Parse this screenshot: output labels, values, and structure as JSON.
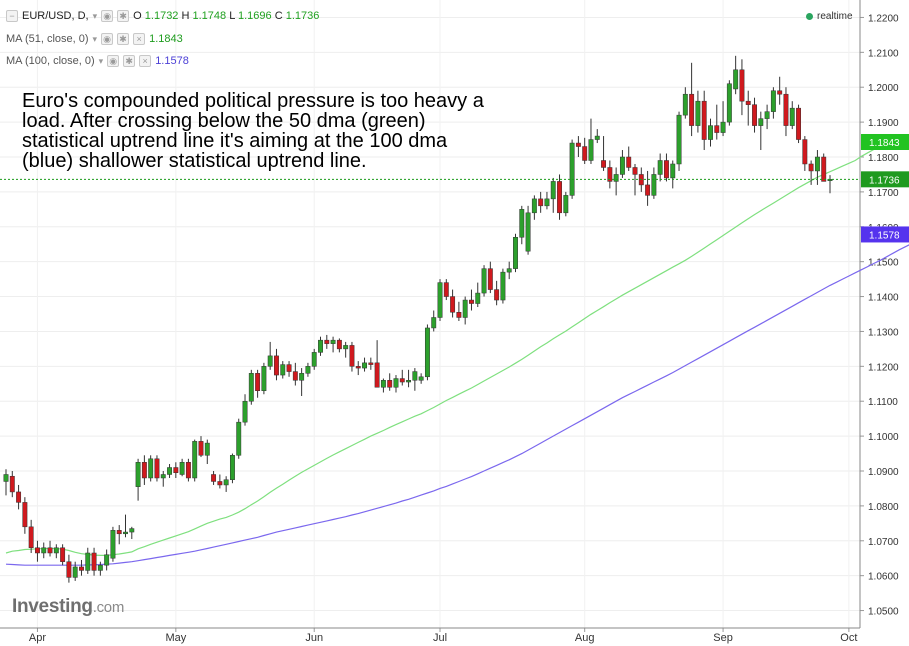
{
  "header": {
    "symbol": "EUR/USD, D,",
    "ohlc": [
      {
        "k": "O",
        "v": "1.1732"
      },
      {
        "k": "H",
        "v": "1.1748"
      },
      {
        "k": "L",
        "v": "1.1696"
      },
      {
        "k": "C",
        "v": "1.1736"
      }
    ],
    "ma51_label": "MA (51, close, 0)",
    "ma51_value": "1.1843",
    "ma100_label": "MA (100, close, 0)",
    "ma100_value": "1.1578",
    "realtime": "realtime"
  },
  "annotation": "Euro's compounded political pressure is too heavy a load. After crossing below the 50 dma (green) statistical uptrend line it's aiming at the 100 dma (blue) shallower statistical uptrend line.",
  "logo": {
    "main": "Investing",
    "suffix": ".com"
  },
  "colors": {
    "up": "#2ca02c",
    "down": "#d0191e",
    "ma51": "#7fe07f",
    "ma100": "#7b68ee",
    "price_line": "#1a9c1a"
  },
  "chart_data": {
    "type": "candlestick",
    "ylim": [
      1.045,
      1.225
    ],
    "yticks": [
      "1.0500",
      "1.0600",
      "1.0700",
      "1.0800",
      "1.0900",
      "1.1000",
      "1.1100",
      "1.1200",
      "1.1300",
      "1.1400",
      "1.1500",
      "1.1600",
      "1.1700",
      "1.1800",
      "1.1900",
      "1.2000",
      "1.2100",
      "1.2200"
    ],
    "month_labels": [
      {
        "label": "Apr",
        "i": 5
      },
      {
        "label": "May",
        "i": 27
      },
      {
        "label": "Jun",
        "i": 49
      },
      {
        "label": "Jul",
        "i": 69
      },
      {
        "label": "Aug",
        "i": 92
      },
      {
        "label": "Sep",
        "i": 114
      },
      {
        "label": "Oct",
        "i": 134
      }
    ],
    "price_tags": [
      {
        "value": 1.1843,
        "label": "1.1843",
        "series": "ma51"
      },
      {
        "value": 1.1736,
        "label": "1.1736",
        "series": "last"
      },
      {
        "value": 1.1578,
        "label": "1.1578",
        "series": "ma100"
      }
    ],
    "candles": [
      {
        "o": 1.087,
        "h": 1.0905,
        "l": 1.083,
        "c": 1.089
      },
      {
        "o": 1.0885,
        "h": 1.09,
        "l": 1.0825,
        "c": 1.084
      },
      {
        "o": 1.084,
        "h": 1.086,
        "l": 1.079,
        "c": 1.081
      },
      {
        "o": 1.081,
        "h": 1.0825,
        "l": 1.072,
        "c": 1.074
      },
      {
        "o": 1.074,
        "h": 1.076,
        "l": 1.0665,
        "c": 1.068
      },
      {
        "o": 1.068,
        "h": 1.07,
        "l": 1.064,
        "c": 1.0665
      },
      {
        "o": 1.0665,
        "h": 1.0695,
        "l": 1.065,
        "c": 1.068
      },
      {
        "o": 1.068,
        "h": 1.07,
        "l": 1.0655,
        "c": 1.0665
      },
      {
        "o": 1.0665,
        "h": 1.069,
        "l": 1.065,
        "c": 1.068
      },
      {
        "o": 1.068,
        "h": 1.069,
        "l": 1.063,
        "c": 1.064
      },
      {
        "o": 1.064,
        "h": 1.066,
        "l": 1.058,
        "c": 1.0595
      },
      {
        "o": 1.0595,
        "h": 1.064,
        "l": 1.0585,
        "c": 1.0625
      },
      {
        "o": 1.0625,
        "h": 1.0645,
        "l": 1.06,
        "c": 1.0615
      },
      {
        "o": 1.0615,
        "h": 1.068,
        "l": 1.0605,
        "c": 1.0665
      },
      {
        "o": 1.0665,
        "h": 1.068,
        "l": 1.06,
        "c": 1.0615
      },
      {
        "o": 1.0615,
        "h": 1.064,
        "l": 1.06,
        "c": 1.063
      },
      {
        "o": 1.063,
        "h": 1.0675,
        "l": 1.0615,
        "c": 1.066
      },
      {
        "o": 1.065,
        "h": 1.074,
        "l": 1.064,
        "c": 1.073
      },
      {
        "o": 1.073,
        "h": 1.0745,
        "l": 1.069,
        "c": 1.072
      },
      {
        "o": 1.072,
        "h": 1.0775,
        "l": 1.071,
        "c": 1.0725
      },
      {
        "o": 1.0725,
        "h": 1.074,
        "l": 1.0705,
        "c": 1.0735
      },
      {
        "o": 1.0855,
        "h": 1.0935,
        "l": 1.0815,
        "c": 1.0925
      },
      {
        "o": 1.0925,
        "h": 1.0945,
        "l": 1.086,
        "c": 1.088
      },
      {
        "o": 1.088,
        "h": 1.0945,
        "l": 1.087,
        "c": 1.0935
      },
      {
        "o": 1.0935,
        "h": 1.0945,
        "l": 1.087,
        "c": 1.088
      },
      {
        "o": 1.088,
        "h": 1.09,
        "l": 1.0855,
        "c": 1.089
      },
      {
        "o": 1.089,
        "h": 1.092,
        "l": 1.088,
        "c": 1.091
      },
      {
        "o": 1.091,
        "h": 1.0925,
        "l": 1.088,
        "c": 1.0895
      },
      {
        "o": 1.089,
        "h": 1.0935,
        "l": 1.0885,
        "c": 1.0925
      },
      {
        "o": 1.0925,
        "h": 1.0935,
        "l": 1.087,
        "c": 1.088
      },
      {
        "o": 1.088,
        "h": 1.099,
        "l": 1.087,
        "c": 1.0985
      },
      {
        "o": 1.0985,
        "h": 1.1,
        "l": 1.094,
        "c": 1.0945
      },
      {
        "o": 1.0945,
        "h": 1.099,
        "l": 1.092,
        "c": 1.098
      },
      {
        "o": 1.089,
        "h": 1.09,
        "l": 1.086,
        "c": 1.087
      },
      {
        "o": 1.087,
        "h": 1.089,
        "l": 1.085,
        "c": 1.086
      },
      {
        "o": 1.086,
        "h": 1.0885,
        "l": 1.084,
        "c": 1.0875
      },
      {
        "o": 1.0875,
        "h": 1.095,
        "l": 1.0865,
        "c": 1.0945
      },
      {
        "o": 1.0945,
        "h": 1.105,
        "l": 1.0935,
        "c": 1.104
      },
      {
        "o": 1.104,
        "h": 1.112,
        "l": 1.103,
        "c": 1.11
      },
      {
        "o": 1.11,
        "h": 1.119,
        "l": 1.109,
        "c": 1.118
      },
      {
        "o": 1.118,
        "h": 1.119,
        "l": 1.111,
        "c": 1.113
      },
      {
        "o": 1.113,
        "h": 1.121,
        "l": 1.112,
        "c": 1.12
      },
      {
        "o": 1.12,
        "h": 1.127,
        "l": 1.119,
        "c": 1.123
      },
      {
        "o": 1.123,
        "h": 1.125,
        "l": 1.116,
        "c": 1.1175
      },
      {
        "o": 1.1175,
        "h": 1.1215,
        "l": 1.1165,
        "c": 1.1205
      },
      {
        "o": 1.1205,
        "h": 1.1215,
        "l": 1.117,
        "c": 1.1185
      },
      {
        "o": 1.1185,
        "h": 1.121,
        "l": 1.1145,
        "c": 1.116
      },
      {
        "o": 1.116,
        "h": 1.1195,
        "l": 1.1115,
        "c": 1.118
      },
      {
        "o": 1.118,
        "h": 1.121,
        "l": 1.117,
        "c": 1.12
      },
      {
        "o": 1.12,
        "h": 1.125,
        "l": 1.119,
        "c": 1.124
      },
      {
        "o": 1.124,
        "h": 1.1285,
        "l": 1.123,
        "c": 1.1275
      },
      {
        "o": 1.1275,
        "h": 1.129,
        "l": 1.125,
        "c": 1.1265
      },
      {
        "o": 1.1265,
        "h": 1.1285,
        "l": 1.124,
        "c": 1.1275
      },
      {
        "o": 1.1275,
        "h": 1.128,
        "l": 1.124,
        "c": 1.125
      },
      {
        "o": 1.125,
        "h": 1.127,
        "l": 1.1225,
        "c": 1.126
      },
      {
        "o": 1.126,
        "h": 1.127,
        "l": 1.1185,
        "c": 1.12
      },
      {
        "o": 1.12,
        "h": 1.1215,
        "l": 1.1175,
        "c": 1.1195
      },
      {
        "o": 1.1195,
        "h": 1.1225,
        "l": 1.1185,
        "c": 1.121
      },
      {
        "o": 1.121,
        "h": 1.1225,
        "l": 1.119,
        "c": 1.1205
      },
      {
        "o": 1.121,
        "h": 1.1275,
        "l": 1.114,
        "c": 1.114
      },
      {
        "o": 1.114,
        "h": 1.1165,
        "l": 1.1125,
        "c": 1.116
      },
      {
        "o": 1.116,
        "h": 1.118,
        "l": 1.113,
        "c": 1.114
      },
      {
        "o": 1.114,
        "h": 1.1175,
        "l": 1.1125,
        "c": 1.1165
      },
      {
        "o": 1.1165,
        "h": 1.119,
        "l": 1.1145,
        "c": 1.1155
      },
      {
        "o": 1.1155,
        "h": 1.119,
        "l": 1.114,
        "c": 1.116
      },
      {
        "o": 1.116,
        "h": 1.1195,
        "l": 1.113,
        "c": 1.1185
      },
      {
        "o": 1.116,
        "h": 1.118,
        "l": 1.115,
        "c": 1.117
      },
      {
        "o": 1.117,
        "h": 1.132,
        "l": 1.116,
        "c": 1.131
      },
      {
        "o": 1.131,
        "h": 1.136,
        "l": 1.13,
        "c": 1.134
      },
      {
        "o": 1.134,
        "h": 1.145,
        "l": 1.133,
        "c": 1.144
      },
      {
        "o": 1.144,
        "h": 1.145,
        "l": 1.139,
        "c": 1.14
      },
      {
        "o": 1.14,
        "h": 1.142,
        "l": 1.134,
        "c": 1.1355
      },
      {
        "o": 1.1355,
        "h": 1.1385,
        "l": 1.133,
        "c": 1.134
      },
      {
        "o": 1.134,
        "h": 1.14,
        "l": 1.132,
        "c": 1.139
      },
      {
        "o": 1.139,
        "h": 1.142,
        "l": 1.136,
        "c": 1.138
      },
      {
        "o": 1.138,
        "h": 1.144,
        "l": 1.137,
        "c": 1.141
      },
      {
        "o": 1.141,
        "h": 1.149,
        "l": 1.14,
        "c": 1.148
      },
      {
        "o": 1.148,
        "h": 1.15,
        "l": 1.141,
        "c": 1.142
      },
      {
        "o": 1.142,
        "h": 1.1445,
        "l": 1.1375,
        "c": 1.139
      },
      {
        "o": 1.139,
        "h": 1.148,
        "l": 1.138,
        "c": 1.147
      },
      {
        "o": 1.147,
        "h": 1.15,
        "l": 1.145,
        "c": 1.148
      },
      {
        "o": 1.148,
        "h": 1.158,
        "l": 1.147,
        "c": 1.157
      },
      {
        "o": 1.157,
        "h": 1.166,
        "l": 1.155,
        "c": 1.165
      },
      {
        "o": 1.153,
        "h": 1.166,
        "l": 1.152,
        "c": 1.164
      },
      {
        "o": 1.164,
        "h": 1.169,
        "l": 1.162,
        "c": 1.168
      },
      {
        "o": 1.168,
        "h": 1.17,
        "l": 1.164,
        "c": 1.166
      },
      {
        "o": 1.166,
        "h": 1.17,
        "l": 1.165,
        "c": 1.168
      },
      {
        "o": 1.168,
        "h": 1.174,
        "l": 1.164,
        "c": 1.173
      },
      {
        "o": 1.173,
        "h": 1.175,
        "l": 1.162,
        "c": 1.164
      },
      {
        "o": 1.164,
        "h": 1.17,
        "l": 1.163,
        "c": 1.169
      },
      {
        "o": 1.169,
        "h": 1.185,
        "l": 1.168,
        "c": 1.184
      },
      {
        "o": 1.184,
        "h": 1.186,
        "l": 1.18,
        "c": 1.183
      },
      {
        "o": 1.183,
        "h": 1.1855,
        "l": 1.178,
        "c": 1.179
      },
      {
        "o": 1.179,
        "h": 1.191,
        "l": 1.178,
        "c": 1.185
      },
      {
        "o": 1.185,
        "h": 1.188,
        "l": 1.184,
        "c": 1.186
      },
      {
        "o": 1.179,
        "h": 1.186,
        "l": 1.176,
        "c": 1.177
      },
      {
        "o": 1.177,
        "h": 1.179,
        "l": 1.171,
        "c": 1.173
      },
      {
        "o": 1.173,
        "h": 1.177,
        "l": 1.169,
        "c": 1.175
      },
      {
        "o": 1.175,
        "h": 1.182,
        "l": 1.174,
        "c": 1.18
      },
      {
        "o": 1.18,
        "h": 1.183,
        "l": 1.176,
        "c": 1.177
      },
      {
        "o": 1.177,
        "h": 1.178,
        "l": 1.169,
        "c": 1.175
      },
      {
        "o": 1.175,
        "h": 1.177,
        "l": 1.17,
        "c": 1.172
      },
      {
        "o": 1.172,
        "h": 1.176,
        "l": 1.166,
        "c": 1.169
      },
      {
        "o": 1.169,
        "h": 1.177,
        "l": 1.168,
        "c": 1.175
      },
      {
        "o": 1.175,
        "h": 1.181,
        "l": 1.173,
        "c": 1.179
      },
      {
        "o": 1.179,
        "h": 1.181,
        "l": 1.173,
        "c": 1.174
      },
      {
        "o": 1.174,
        "h": 1.179,
        "l": 1.171,
        "c": 1.178
      },
      {
        "o": 1.178,
        "h": 1.193,
        "l": 1.176,
        "c": 1.192
      },
      {
        "o": 1.192,
        "h": 1.2,
        "l": 1.191,
        "c": 1.198
      },
      {
        "o": 1.198,
        "h": 1.207,
        "l": 1.186,
        "c": 1.189
      },
      {
        "o": 1.189,
        "h": 1.199,
        "l": 1.187,
        "c": 1.196
      },
      {
        "o": 1.196,
        "h": 1.199,
        "l": 1.182,
        "c": 1.185
      },
      {
        "o": 1.185,
        "h": 1.191,
        "l": 1.183,
        "c": 1.189
      },
      {
        "o": 1.189,
        "h": 1.195,
        "l": 1.185,
        "c": 1.187
      },
      {
        "o": 1.187,
        "h": 1.196,
        "l": 1.186,
        "c": 1.19
      },
      {
        "o": 1.19,
        "h": 1.202,
        "l": 1.189,
        "c": 1.201
      },
      {
        "o": 1.1995,
        "h": 1.209,
        "l": 1.198,
        "c": 1.205
      },
      {
        "o": 1.205,
        "h": 1.208,
        "l": 1.192,
        "c": 1.196
      },
      {
        "o": 1.196,
        "h": 1.199,
        "l": 1.189,
        "c": 1.195
      },
      {
        "o": 1.195,
        "h": 1.197,
        "l": 1.187,
        "c": 1.189
      },
      {
        "o": 1.189,
        "h": 1.193,
        "l": 1.182,
        "c": 1.191
      },
      {
        "o": 1.191,
        "h": 1.195,
        "l": 1.188,
        "c": 1.193
      },
      {
        "o": 1.193,
        "h": 1.2,
        "l": 1.191,
        "c": 1.199
      },
      {
        "o": 1.199,
        "h": 1.203,
        "l": 1.195,
        "c": 1.198
      },
      {
        "o": 1.198,
        "h": 1.2,
        "l": 1.186,
        "c": 1.189
      },
      {
        "o": 1.189,
        "h": 1.196,
        "l": 1.188,
        "c": 1.194
      },
      {
        "o": 1.194,
        "h": 1.195,
        "l": 1.184,
        "c": 1.185
      },
      {
        "o": 1.185,
        "h": 1.186,
        "l": 1.176,
        "c": 1.178
      },
      {
        "o": 1.178,
        "h": 1.179,
        "l": 1.172,
        "c": 1.176
      },
      {
        "o": 1.176,
        "h": 1.182,
        "l": 1.172,
        "c": 1.18
      },
      {
        "o": 1.18,
        "h": 1.181,
        "l": 1.174,
        "c": 1.173
      },
      {
        "o": 1.1732,
        "h": 1.1748,
        "l": 1.1696,
        "c": 1.1736
      }
    ],
    "ma51": [
      1.0665,
      1.067,
      1.0672,
      1.0675,
      1.0676,
      1.0677,
      1.0678,
      1.0678,
      1.0678,
      1.0676,
      1.0672,
      1.0667,
      1.0663,
      1.0661,
      1.0659,
      1.0658,
      1.0658,
      1.066,
      1.0662,
      1.0665,
      1.0668,
      1.0677,
      1.0683,
      1.069,
      1.0696,
      1.0702,
      1.0708,
      1.0714,
      1.072,
      1.0726,
      1.0734,
      1.0742,
      1.075,
      1.0756,
      1.0762,
      1.0767,
      1.0774,
      1.0782,
      1.0792,
      1.0803,
      1.0814,
      1.0826,
      1.0839,
      1.0851,
      1.0862,
      1.0874,
      1.0885,
      1.0896,
      1.0906,
      1.0916,
      1.0926,
      1.0936,
      1.0946,
      1.0955,
      1.0964,
      1.0973,
      1.0982,
      1.0991,
      1.1,
      1.1008,
      1.1016,
      1.1025,
      1.1033,
      1.1041,
      1.1049,
      1.1057,
      1.1064,
      1.1073,
      1.1082,
      1.1092,
      1.1102,
      1.1111,
      1.112,
      1.1129,
      1.1138,
      1.1148,
      1.1158,
      1.1168,
      1.1178,
      1.1188,
      1.1198,
      1.1209,
      1.122,
      1.1232,
      1.1244,
      1.1256,
      1.1267,
      1.1279,
      1.129,
      1.1301,
      1.1313,
      1.1325,
      1.1337,
      1.1349,
      1.136,
      1.1371,
      1.1382,
      1.1393,
      1.1404,
      1.1414,
      1.1424,
      1.1434,
      1.1444,
      1.1454,
      1.1464,
      1.1474,
      1.1484,
      1.1494,
      1.1504,
      1.1515,
      1.1527,
      1.1539,
      1.1551,
      1.1563,
      1.1575,
      1.1587,
      1.1599,
      1.1611,
      1.1623,
      1.1635,
      1.1646,
      1.1657,
      1.1668,
      1.1679,
      1.169,
      1.1701,
      1.1712,
      1.1722,
      1.1732,
      1.1742,
      1.175,
      1.1758,
      1.1766,
      1.1774,
      1.1782,
      1.179,
      1.1802,
      1.1812,
      1.1822,
      1.183,
      1.1837,
      1.1843
    ],
    "ma100": [
      1.0633,
      1.0632,
      1.0631,
      1.063,
      1.063,
      1.063,
      1.063,
      1.063,
      1.063,
      1.063,
      1.063,
      1.063,
      1.063,
      1.0631,
      1.0631,
      1.0632,
      1.0633,
      1.0634,
      1.0636,
      1.0638,
      1.064,
      1.0643,
      1.0646,
      1.0649,
      1.0652,
      1.0655,
      1.0658,
      1.0661,
      1.0664,
      1.0667,
      1.067,
      1.0674,
      1.0678,
      1.0682,
      1.0686,
      1.069,
      1.0694,
      1.0698,
      1.0702,
      1.0706,
      1.071,
      1.0715,
      1.072,
      1.0725,
      1.0729,
      1.0733,
      1.0737,
      1.0741,
      1.0745,
      1.0749,
      1.0753,
      1.0757,
      1.0761,
      1.0765,
      1.0769,
      1.0774,
      1.0778,
      1.0783,
      1.0788,
      1.0793,
      1.0798,
      1.0803,
      1.0808,
      1.0814,
      1.0819,
      1.0825,
      1.0831,
      1.0837,
      1.0843,
      1.085,
      1.0856,
      1.0863,
      1.087,
      1.0877,
      1.0884,
      1.0892,
      1.09,
      1.0908,
      1.0916,
      1.0924,
      1.0932,
      1.0941,
      1.095,
      1.096,
      1.097,
      1.098,
      1.099,
      1.1,
      1.101,
      1.102,
      1.103,
      1.104,
      1.105,
      1.106,
      1.107,
      1.108,
      1.109,
      1.11,
      1.111,
      1.1119,
      1.1128,
      1.1137,
      1.1146,
      1.1155,
      1.1164,
      1.1173,
      1.1182,
      1.1192,
      1.1202,
      1.1212,
      1.1222,
      1.1232,
      1.1242,
      1.1252,
      1.1262,
      1.1272,
      1.1282,
      1.1292,
      1.1302,
      1.1312,
      1.1322,
      1.1332,
      1.1342,
      1.1352,
      1.1362,
      1.1372,
      1.1382,
      1.1392,
      1.1402,
      1.1412,
      1.1422,
      1.1432,
      1.1441,
      1.145,
      1.1459,
      1.1468,
      1.1477,
      1.1486,
      1.1495,
      1.1504,
      1.1514,
      1.1524,
      1.1534,
      1.1543,
      1.1552,
      1.1561,
      1.157,
      1.1578
    ]
  }
}
